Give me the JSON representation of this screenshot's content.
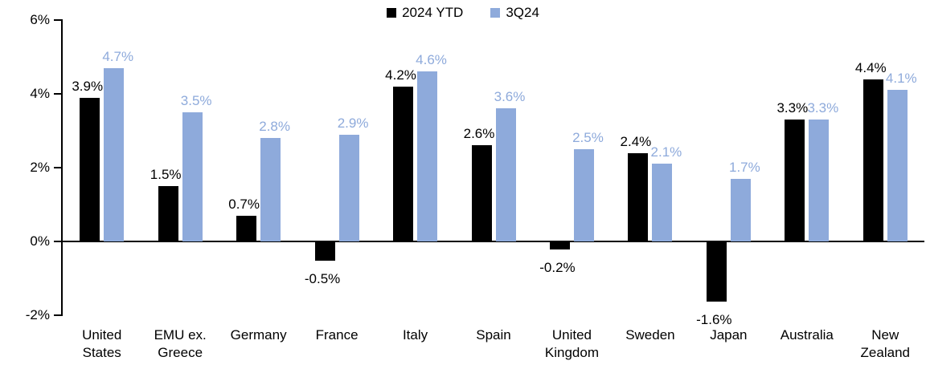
{
  "legend": {
    "series1_label": "2024 YTD",
    "series2_label": "3Q24"
  },
  "colors": {
    "series1": "#000000",
    "series2": "#8EAADB",
    "axis": "#000000",
    "background": "#FFFFFF"
  },
  "chart_data": {
    "type": "bar",
    "title": "",
    "xlabel": "",
    "ylabel": "",
    "categories": [
      "United States",
      "EMU ex. Greece",
      "Germany",
      "France",
      "Italy",
      "Spain",
      "United Kingdom",
      "Sweden",
      "Japan",
      "Australia",
      "New Zealand"
    ],
    "series": [
      {
        "name": "2024 YTD",
        "color": "#000000",
        "values": [
          3.9,
          1.5,
          0.7,
          -0.5,
          4.2,
          2.6,
          -0.2,
          2.4,
          -1.6,
          3.3,
          4.4
        ],
        "labels": [
          "3.9%",
          "1.5%",
          "0.7%",
          "-0.5%",
          "4.2%",
          "2.6%",
          "-0.2%",
          "2.4%",
          "-1.6%",
          "3.3%",
          "4.4%"
        ]
      },
      {
        "name": "3Q24",
        "color": "#8EAADB",
        "values": [
          4.7,
          3.5,
          2.8,
          2.9,
          4.6,
          3.6,
          2.5,
          2.1,
          1.7,
          3.3,
          4.1
        ],
        "labels": [
          "4.7%",
          "3.5%",
          "2.8%",
          "2.9%",
          "4.6%",
          "3.6%",
          "2.5%",
          "2.1%",
          "1.7%",
          "3.3%",
          "4.1%"
        ]
      }
    ],
    "ylim": [
      -2,
      6
    ],
    "yticks": [
      6,
      4,
      2,
      0,
      -2
    ],
    "ytick_labels": [
      "6%",
      "4%",
      "2%",
      "0%",
      "-2%"
    ],
    "grid": false,
    "legend_position": "top-center",
    "value_labels": "outside-end"
  }
}
